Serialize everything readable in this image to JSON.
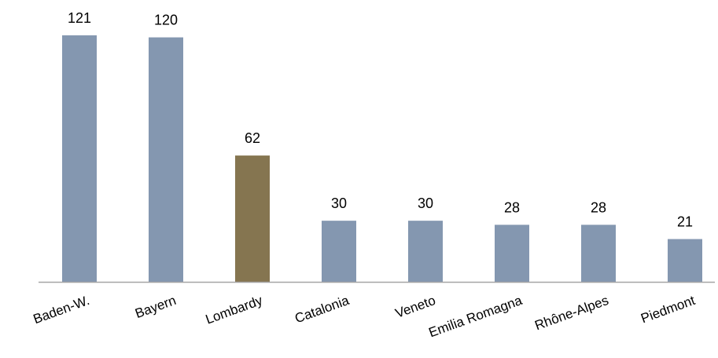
{
  "chart_data": {
    "type": "bar",
    "categories": [
      "Baden-W.",
      "Bayern",
      "Lombardy",
      "Catalonia",
      "Veneto",
      "Emilia Romagna",
      "Rhône-Alpes",
      "Piedmont"
    ],
    "values": [
      121,
      120,
      62,
      30,
      30,
      28,
      28,
      21
    ],
    "title": "",
    "xlabel": "",
    "ylabel": "",
    "ylim": [
      0,
      121
    ],
    "grid": false,
    "legend": "none",
    "colors": {
      "default": "#8497b0",
      "highlight": "#857550",
      "axis": "#a6a6a6"
    },
    "highlight_category": "Lombardy"
  }
}
